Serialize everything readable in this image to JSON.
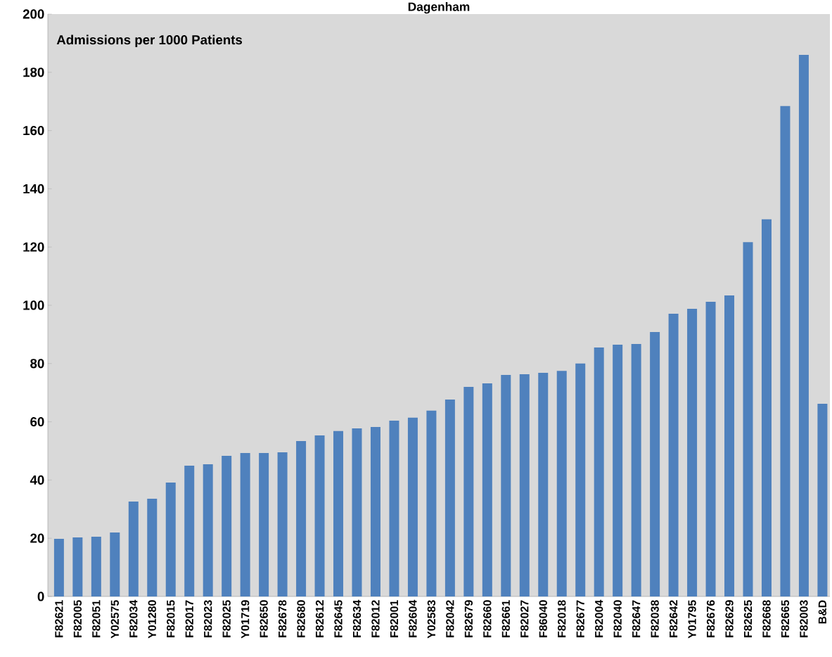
{
  "chart_data": {
    "type": "bar",
    "title": "Dagenham",
    "annotations": [
      "Admissions per 1000 Patients"
    ],
    "categories": [
      "F82621",
      "F82005",
      "F82051",
      "Y02575",
      "F82034",
      "Y01280",
      "F82015",
      "F82017",
      "F82023",
      "F82025",
      "Y01719",
      "F82650",
      "F82678",
      "F82680",
      "F82612",
      "F82645",
      "F82634",
      "F82012",
      "F82001",
      "F82604",
      "Y02583",
      "F82042",
      "F82679",
      "F82660",
      "F82661",
      "F82027",
      "F86040",
      "F82018",
      "F82677",
      "F82004",
      "F82040",
      "F82647",
      "F82038",
      "F82642",
      "Y01795",
      "F82676",
      "F82629",
      "F82625",
      "F82668",
      "F82665",
      "F82003",
      "B&D"
    ],
    "values": [
      19.8,
      20.3,
      20.5,
      22,
      32.6,
      33.6,
      39.1,
      44.9,
      45.4,
      48.3,
      49.3,
      49.3,
      49.5,
      53.4,
      55.3,
      56.8,
      57.7,
      58.2,
      60.4,
      61.4,
      63.8,
      67.6,
      72,
      73.2,
      76.1,
      76.3,
      76.8,
      77.5,
      80,
      85.5,
      86.5,
      86.7,
      90.8,
      97.1,
      98.8,
      101.2,
      103.4,
      121.7,
      129.5,
      168.4,
      186,
      66.2
    ],
    "color": "#4f81bd",
    "ylim": [
      0,
      200
    ],
    "yticks": [
      0,
      20,
      40,
      60,
      80,
      100,
      120,
      140,
      160,
      180,
      200
    ],
    "grid": false
  }
}
